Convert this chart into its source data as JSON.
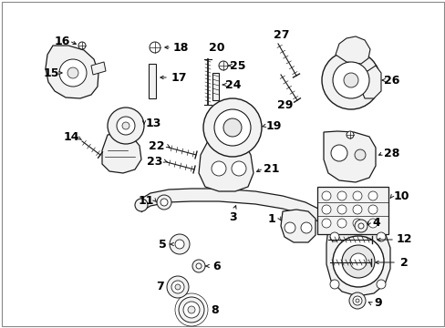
{
  "bg_color": "#ffffff",
  "line_color": "#1a1a1a",
  "fig_width": 4.89,
  "fig_height": 3.6,
  "dpi": 100,
  "border_color": "#aaaaaa",
  "gray_fill": "#e8e8e8",
  "light_fill": "#f2f2f2"
}
